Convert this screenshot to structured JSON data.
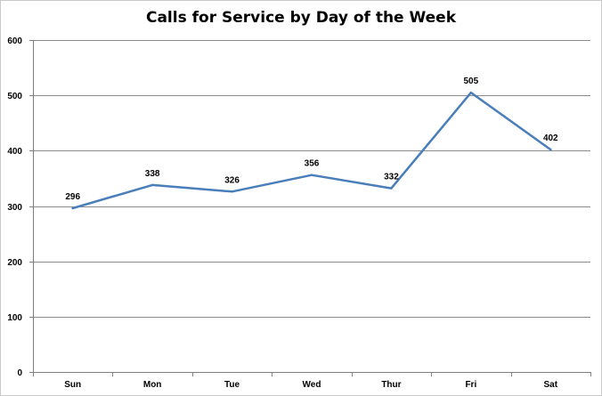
{
  "chart_data": {
    "type": "line",
    "title": "Calls for Service by Day of the Week",
    "xlabel": "",
    "ylabel": "",
    "categories": [
      "Sun",
      "Mon",
      "Tue",
      "Wed",
      "Thur",
      "Fri",
      "Sat"
    ],
    "series": [
      {
        "values": [
          296,
          338,
          326,
          356,
          332,
          505,
          402
        ]
      }
    ],
    "ylim": [
      0,
      600
    ],
    "yticks": [
      0,
      100,
      200,
      300,
      400,
      500,
      600
    ],
    "grid": true,
    "legend": "none",
    "line_color": "#4a7ebb",
    "grid_color": "#8c8c8c"
  }
}
